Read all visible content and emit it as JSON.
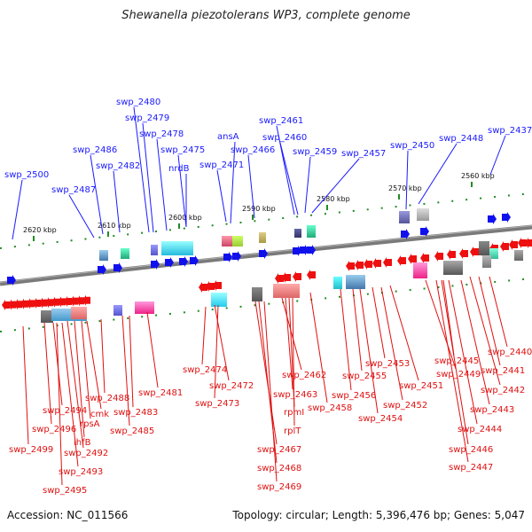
{
  "title": "Shewanella piezotolerans WP3, complete genome",
  "footer": {
    "accession": "Accession: NC_011566",
    "summary": "Topology: circular; Length: 5,396,476 bp; Genes: 5,047"
  },
  "colors": {
    "forward": "#1010ee",
    "reverse": "#ee1010",
    "backbone": "#808080",
    "tick": "#228b22"
  },
  "kbp_ticks": [
    "2620 kbp",
    "2610 kbp",
    "2600 kbp",
    "2590 kbp",
    "2580 kbp",
    "2570 kbp",
    "2560 kbp"
  ],
  "top_labels": [
    "swp_2500",
    "swp_2487",
    "swp_2486",
    "swp_2482",
    "swp_2480",
    "swp_2479",
    "swp_2478",
    "swp_2475",
    "nrdB",
    "ansA",
    "swp_2471",
    "swp_2466",
    "swp_2461",
    "swp_2460",
    "swp_2459",
    "swp_2457",
    "swp_2450",
    "swp_2448",
    "swp_2437"
  ],
  "bottom_labels": [
    "swp_2499",
    "swp_2496",
    "swp_2494",
    "swp_2495",
    "swp_2493",
    "swp_2492",
    "ihfB",
    "rpsA",
    "cmk",
    "swp_2488",
    "swp_2485",
    "swp_2483",
    "swp_2481",
    "swp_2474",
    "swp_2472",
    "swp_2473",
    "swp_2467",
    "swp_2468",
    "swp_2469",
    "swp_2462",
    "swp_2463",
    "rpmI",
    "rplT",
    "swp_2458",
    "swp_2456",
    "swp_2455",
    "swp_2454",
    "swp_2453",
    "swp_2452",
    "swp_2451",
    "swp_2449",
    "swp_2447",
    "swp_2446",
    "swp_2445",
    "swp_2444",
    "swp_2443",
    "swp_2442",
    "swp_2441",
    "swp_2440"
  ]
}
